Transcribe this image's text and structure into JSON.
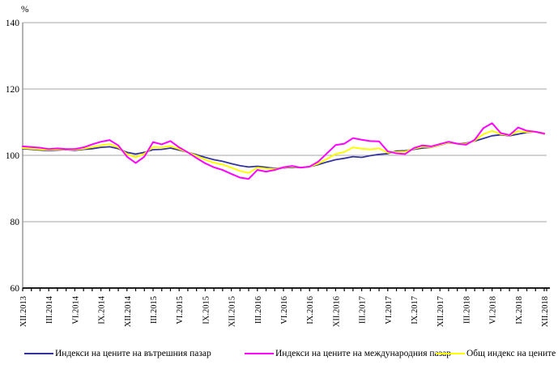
{
  "chart_data": {
    "type": "line",
    "title": "",
    "ylabel": "%",
    "ylim": [
      60,
      140
    ],
    "yticks": [
      60,
      80,
      100,
      120,
      140
    ],
    "x_tick_labels": [
      "XII.2013",
      "III.2014",
      "VI.2014",
      "IX.2014",
      "XII.2014",
      "III.2015",
      "VI.2015",
      "IX.2015",
      "XII.2015",
      "III.2016",
      "VI.2016",
      "IX.2016",
      "XII.2016",
      "III.2017",
      "VI.2017",
      "IX.2017",
      "XII.2017",
      "III.2018",
      "VI.2018",
      "IX.2018",
      "XII.2018"
    ],
    "points_per_label": 3,
    "n_points": 61,
    "grid": "horizontal",
    "legend_position": "bottom",
    "colors": {
      "domestic": "#3333A0",
      "international": "#FF00FF",
      "total": "#FFFF00",
      "gridline": "#A6A6A6",
      "y_axis": "#9A9A9A",
      "x_axis": "#000000",
      "text": "#000000"
    },
    "series": [
      {
        "name": "Индекси на цените на вътрешния пазар",
        "color": "#3333A0",
        "values": [
          102.0,
          101.8,
          101.6,
          101.4,
          101.6,
          101.7,
          101.5,
          101.8,
          102.0,
          102.4,
          102.6,
          102.0,
          100.9,
          100.4,
          100.9,
          101.7,
          101.8,
          102.2,
          101.6,
          100.9,
          100.2,
          99.4,
          98.7,
          98.2,
          97.5,
          96.9,
          96.5,
          96.7,
          96.4,
          96.1,
          96.2,
          96.4,
          96.3,
          96.6,
          97.2,
          98.0,
          98.7,
          99.1,
          99.6,
          99.4,
          99.9,
          100.3,
          100.5,
          101.3,
          101.4,
          101.8,
          102.2,
          102.4,
          103.1,
          103.8,
          103.5,
          103.7,
          104.3,
          105.1,
          105.9,
          106.2,
          105.9,
          106.4,
          106.9,
          107.1,
          106.4
        ]
      },
      {
        "name": "Индекси на цените на международния пазар",
        "color": "#FF00FF",
        "values": [
          102.7,
          102.5,
          102.3,
          101.9,
          102.1,
          101.9,
          101.9,
          102.4,
          103.3,
          104.1,
          104.6,
          103.0,
          99.6,
          97.7,
          99.6,
          104.0,
          103.3,
          104.3,
          102.4,
          100.9,
          99.2,
          97.6,
          96.4,
          95.6,
          94.4,
          93.3,
          92.9,
          95.6,
          95.1,
          95.6,
          96.4,
          96.8,
          96.3,
          96.6,
          98.1,
          100.6,
          103.1,
          103.5,
          105.2,
          104.7,
          104.3,
          104.2,
          101.2,
          100.6,
          100.4,
          102.2,
          103.0,
          102.7,
          103.4,
          104.1,
          103.5,
          103.2,
          104.7,
          108.2,
          109.7,
          106.7,
          106.1,
          108.4,
          107.4,
          107.1,
          106.6
        ]
      },
      {
        "name": "Общ индекс на цените",
        "color": "#FFFF00",
        "values": [
          102.2,
          102.0,
          101.8,
          101.6,
          101.8,
          101.8,
          101.7,
          102.0,
          102.5,
          103.0,
          103.4,
          102.4,
          100.4,
          99.4,
          100.5,
          102.5,
          102.4,
          102.8,
          101.9,
          100.9,
          99.9,
          98.7,
          97.8,
          97.2,
          96.3,
          95.3,
          94.7,
          96.3,
          96.0,
          95.9,
          96.3,
          96.6,
          96.3,
          96.6,
          97.5,
          98.9,
          100.4,
          101.0,
          102.4,
          102.0,
          101.8,
          102.1,
          100.8,
          101.0,
          101.1,
          102.0,
          102.6,
          102.5,
          103.2,
          103.9,
          103.5,
          103.5,
          104.4,
          106.4,
          107.4,
          106.4,
          106.0,
          107.3,
          107.0,
          107.1,
          106.5
        ]
      }
    ]
  },
  "legend": {
    "items": [
      {
        "label": "Индекси на цените на вътрешния пазар"
      },
      {
        "label": "Индекси на цените на международния пазар"
      },
      {
        "label": "Общ индекс на цените"
      }
    ]
  }
}
